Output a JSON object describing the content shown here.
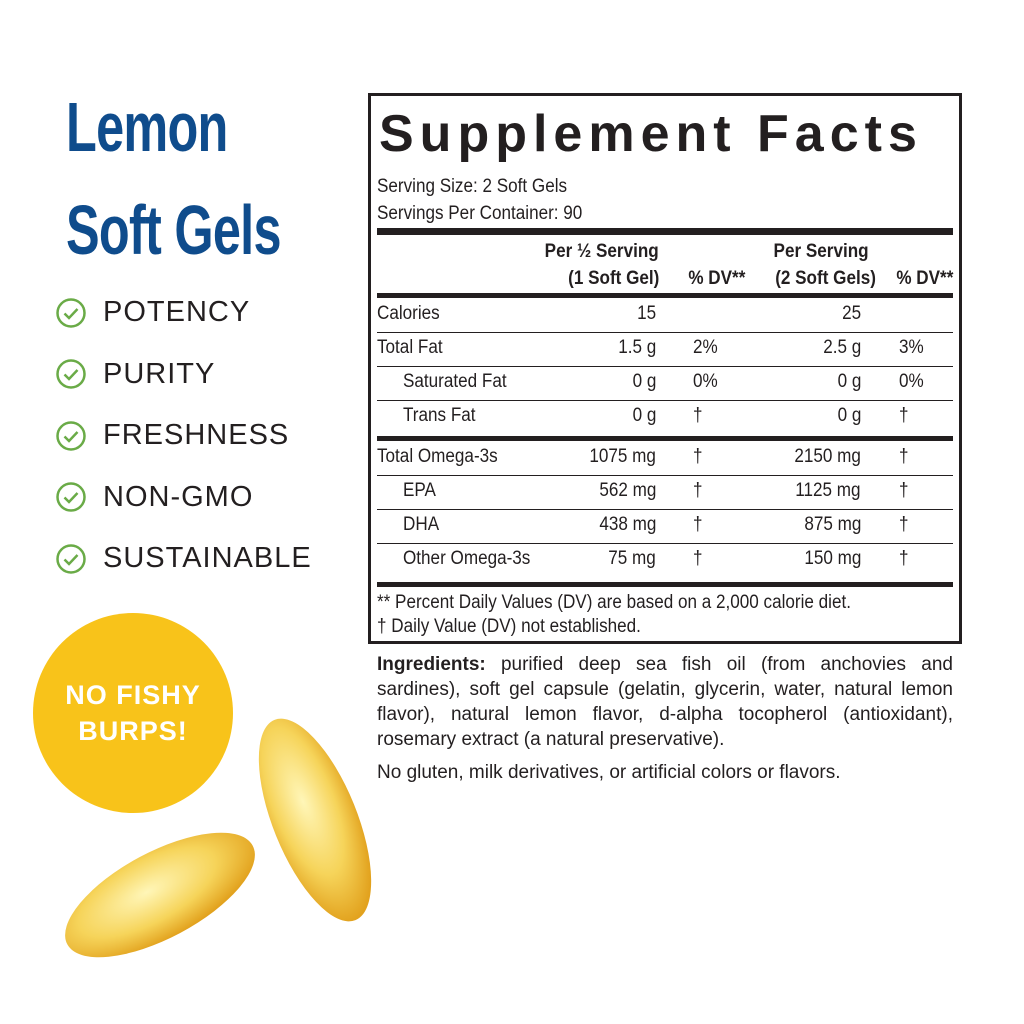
{
  "heading": [
    "Lemon",
    "Soft Gels"
  ],
  "features": [
    "POTENCY",
    "PURITY",
    "FRESHNESS",
    "NON-GMO",
    "SUSTAINABLE"
  ],
  "badge": [
    "NO FISHY",
    "BURPS!"
  ],
  "facts": {
    "title": "Supplement Facts",
    "serving_size": "Serving Size: 2 Soft Gels",
    "servings_per_container": "Servings Per Container: 90",
    "headers": {
      "half1": "Per ½ Serving",
      "half2": "(1 Soft Gel)",
      "dv1": "% DV**",
      "full1": "Per Serving",
      "full2": "(2 Soft Gels)",
      "dv2": "% DV**"
    },
    "rows": [
      {
        "label": "Calories",
        "half": "15",
        "dv1": "",
        "full": "25",
        "dv2": "",
        "indent": false
      },
      {
        "label": "Total Fat",
        "half": "1.5 g",
        "dv1": "2%",
        "full": "2.5 g",
        "dv2": "3%",
        "indent": false
      },
      {
        "label": "Saturated Fat",
        "half": "0 g",
        "dv1": "0%",
        "full": "0 g",
        "dv2": "0%",
        "indent": true
      },
      {
        "label": "Trans Fat",
        "half": "0 g",
        "dv1": "†",
        "full": "0 g",
        "dv2": "†",
        "indent": true
      },
      {
        "label": "Total Omega-3s",
        "half": "1075 mg",
        "dv1": "†",
        "full": "2150 mg",
        "dv2": "†",
        "indent": false
      },
      {
        "label": "EPA",
        "half": "562 mg",
        "dv1": "†",
        "full": "1125 mg",
        "dv2": "†",
        "indent": true
      },
      {
        "label": "DHA",
        "half": "438 mg",
        "dv1": "†",
        "full": "875 mg",
        "dv2": "†",
        "indent": true
      },
      {
        "label": "Other Omega-3s",
        "half": "75 mg",
        "dv1": "†",
        "full": "150 mg",
        "dv2": "†",
        "indent": true
      }
    ],
    "footnotes": [
      "** Percent Daily Values (DV) are based on a 2,000 calorie diet.",
      "†  Daily Value (DV) not established."
    ]
  },
  "ingredients": {
    "label": "Ingredients:",
    "text": " purified deep sea fish oil (from anchovies and sardines), soft gel capsule (gelatin, glycerin, water, natural lemon flavor), natural lemon flavor, d-alpha tocopherol (antioxidant), rosemary extract (a natural preservative).",
    "note": "No gluten, milk derivatives, or artificial colors or flavors."
  },
  "colors": {
    "heading": "#0f4c8c",
    "check": "#6aab47",
    "badge": "#f8c31a"
  }
}
